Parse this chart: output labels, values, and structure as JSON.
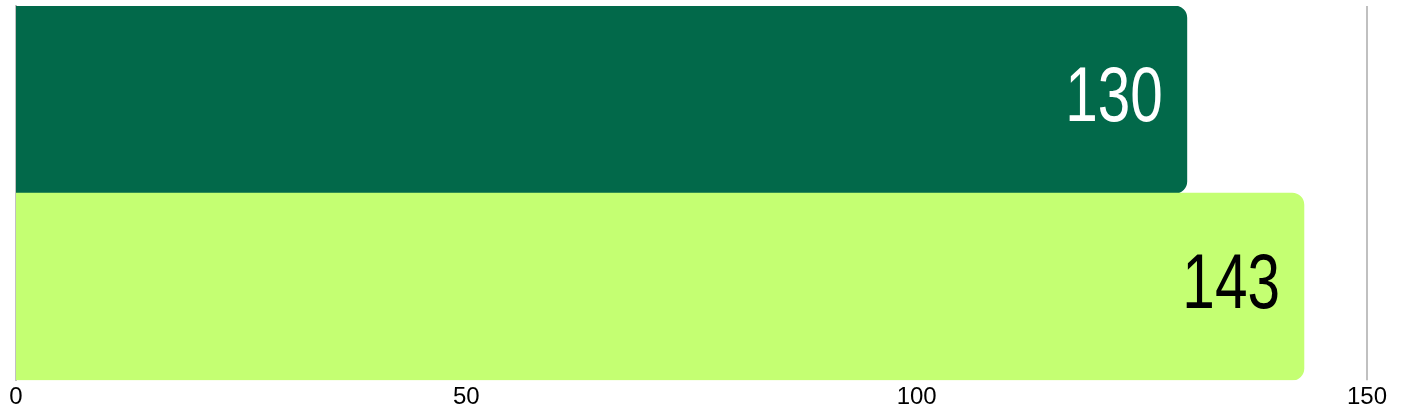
{
  "chart_data": {
    "type": "bar",
    "orientation": "horizontal",
    "categories": [
      null,
      null
    ],
    "values": [
      130,
      143
    ],
    "colors": [
      "#02694a",
      "#c4ff72"
    ],
    "xlim": [
      0,
      150
    ],
    "xticks": [
      0,
      50,
      100,
      150
    ],
    "ref_lines": [
      {
        "axis": "x",
        "value": 150,
        "color": "#c0c0c0"
      }
    ],
    "data_labels": true,
    "legend": false
  }
}
